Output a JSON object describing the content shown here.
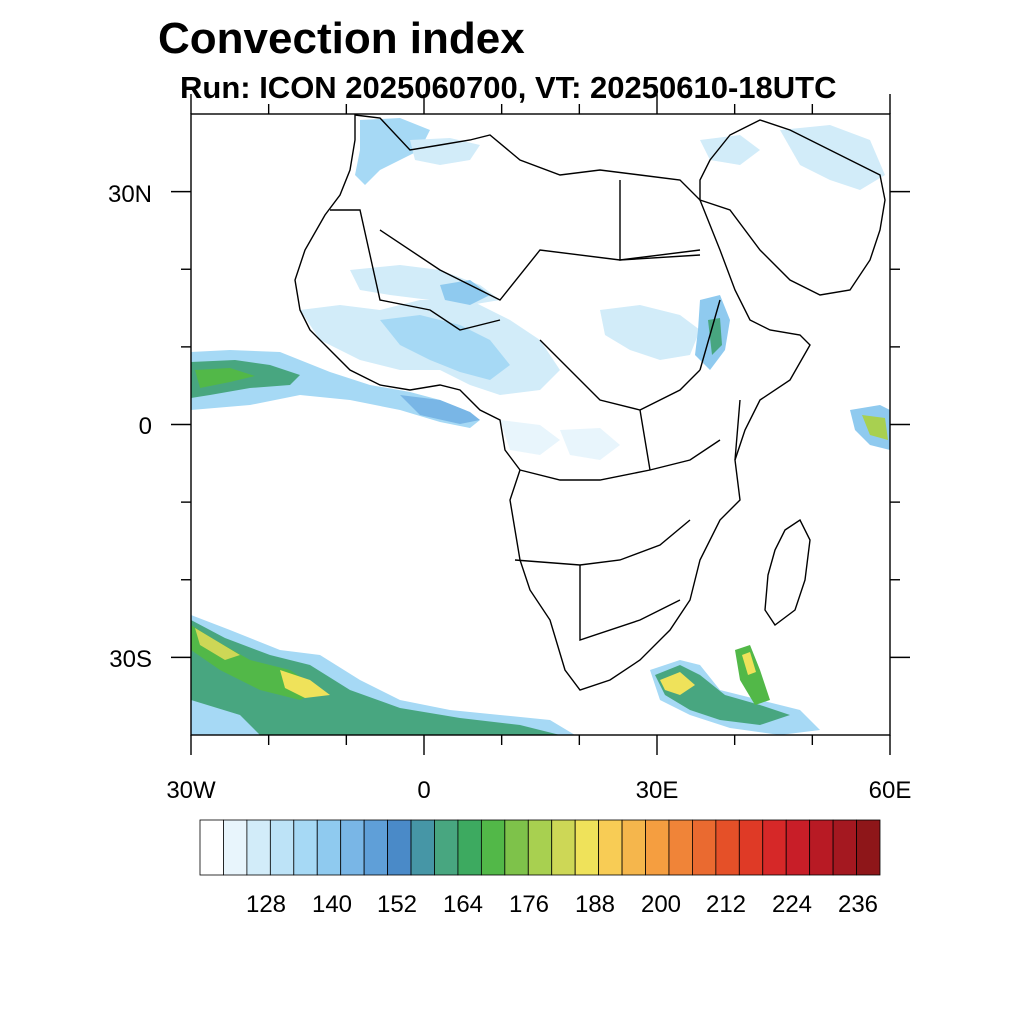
{
  "title": "Convection index",
  "subtitle": "Run: ICON 2025060700,  VT: 20250610-18UTC",
  "map": {
    "lon_range": [
      -30,
      60
    ],
    "lat_range": [
      -40,
      40
    ],
    "lat_ticks": [
      {
        "value": 30,
        "label": "30N"
      },
      {
        "value": 0,
        "label": "0"
      },
      {
        "value": -30,
        "label": "30S"
      }
    ],
    "lon_ticks": [
      {
        "value": -30,
        "label": "30W"
      },
      {
        "value": 0,
        "label": "0"
      },
      {
        "value": 30,
        "label": "30E"
      },
      {
        "value": 60,
        "label": "60E"
      }
    ]
  },
  "colorbar": {
    "labels": [
      "128",
      "140",
      "152",
      "164",
      "176",
      "188",
      "200",
      "212",
      "224",
      "236"
    ],
    "colors": [
      "#ffffff",
      "#e8f5fc",
      "#d2ecf9",
      "#bde3f7",
      "#a6d9f5",
      "#8fcaef",
      "#79b6e6",
      "#5f9fd8",
      "#4a8ac8",
      "#4696a6",
      "#48a680",
      "#3daa60",
      "#52b848",
      "#7ec24a",
      "#a8d050",
      "#cdd756",
      "#efe25a",
      "#f8cc55",
      "#f5b64c",
      "#f59e40",
      "#f08438",
      "#ea6a30",
      "#e55028",
      "#df3a26",
      "#d62828",
      "#c81e28",
      "#b81a24",
      "#a41820",
      "#8e1619"
    ]
  }
}
